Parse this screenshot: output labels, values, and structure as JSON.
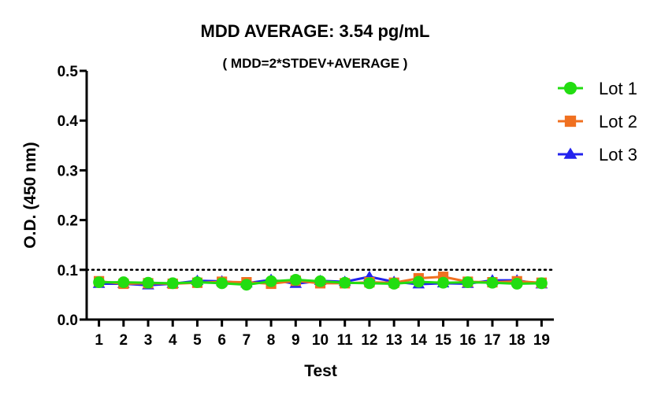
{
  "chart_data": {
    "type": "line",
    "title": "MDD AVERAGE:  3.54 pg/mL",
    "subtitle": "( MDD=2*STDEV+AVERAGE )",
    "xlabel": "Test",
    "ylabel": "O.D. (450 nm)",
    "x": [
      1,
      2,
      3,
      4,
      5,
      6,
      7,
      8,
      9,
      10,
      11,
      12,
      13,
      14,
      15,
      16,
      17,
      18,
      19
    ],
    "xticks": [
      "1",
      "2",
      "3",
      "4",
      "5",
      "6",
      "7",
      "8",
      "9",
      "10",
      "11",
      "12",
      "13",
      "14",
      "15",
      "16",
      "17",
      "18",
      "19"
    ],
    "xlim": [
      0.5,
      19.5
    ],
    "ylim": [
      0,
      0.5
    ],
    "yticks": [
      "0.0",
      "0.1",
      "0.2",
      "0.3",
      "0.4",
      "0.5"
    ],
    "ytick_values": [
      0,
      0.1,
      0.2,
      0.3,
      0.4,
      0.5
    ],
    "reference_line": {
      "y": 0.1,
      "style": "dotted"
    },
    "grid": false,
    "legend_position": "top-right",
    "series": [
      {
        "name": "Lot 1",
        "color": "#22dd11",
        "marker": "circle",
        "values": [
          0.075,
          0.075,
          0.074,
          0.073,
          0.075,
          0.073,
          0.07,
          0.077,
          0.08,
          0.077,
          0.074,
          0.073,
          0.072,
          0.076,
          0.074,
          0.075,
          0.074,
          0.072,
          0.073
        ]
      },
      {
        "name": "Lot 2",
        "color": "#f07020",
        "marker": "square",
        "values": [
          0.077,
          0.072,
          0.073,
          0.072,
          0.074,
          0.076,
          0.075,
          0.072,
          0.078,
          0.073,
          0.073,
          0.075,
          0.074,
          0.083,
          0.086,
          0.076,
          0.075,
          0.077,
          0.074
        ]
      },
      {
        "name": "Lot 3",
        "color": "#2222ee",
        "marker": "triangle",
        "values": [
          0.072,
          0.072,
          0.069,
          0.072,
          0.078,
          0.077,
          0.073,
          0.08,
          0.072,
          0.078,
          0.076,
          0.086,
          0.076,
          0.071,
          0.073,
          0.072,
          0.079,
          0.079,
          0.071
        ]
      }
    ]
  }
}
